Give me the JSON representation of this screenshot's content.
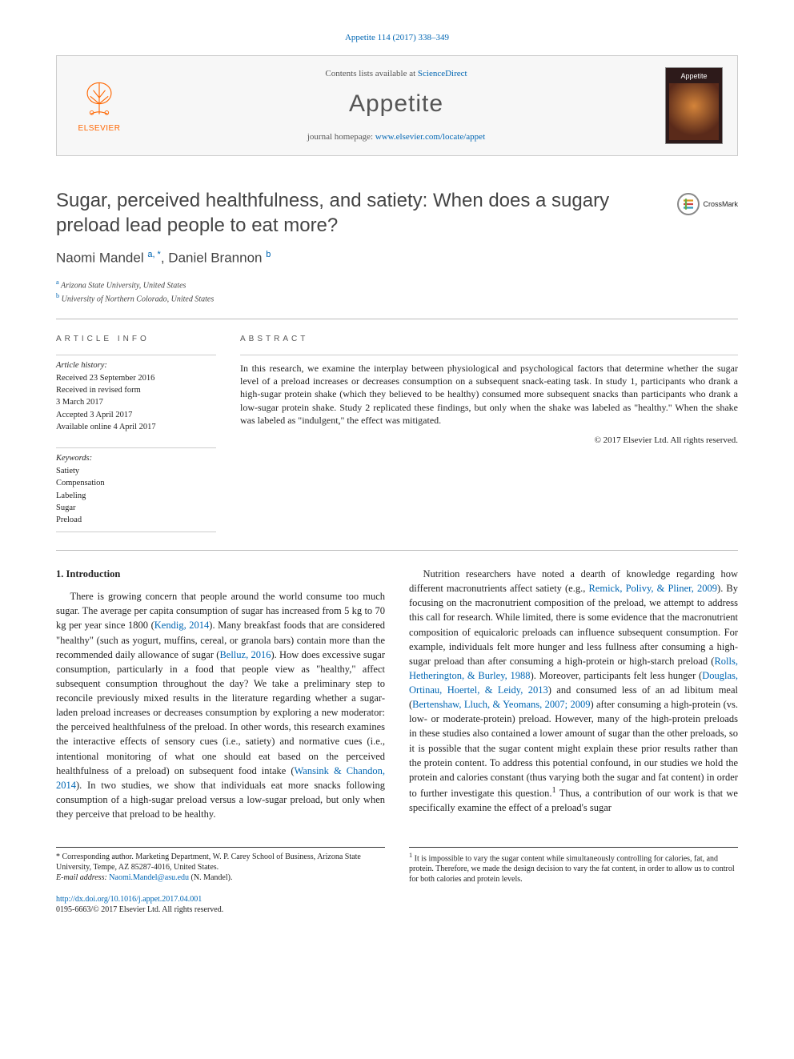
{
  "citation": "Appetite 114 (2017) 338–349",
  "header": {
    "contents_prefix": "Contents lists available at ",
    "contents_link": "ScienceDirect",
    "journal": "Appetite",
    "homepage_prefix": "journal homepage: ",
    "homepage_url": "www.elsevier.com/locate/appet",
    "publisher_label": "ELSEVIER",
    "cover_title": "Appetite"
  },
  "crossmark": "CrossMark",
  "article": {
    "title": "Sugar, perceived healthfulness, and satiety: When does a sugary preload lead people to eat more?",
    "authors_html": "Naomi Mandel <sup>a, *</sup>, Daniel Brannon <sup>b</sup>",
    "affiliations": [
      {
        "sup": "a",
        "text": "Arizona State University, United States"
      },
      {
        "sup": "b",
        "text": "University of Northern Colorado, United States"
      }
    ]
  },
  "info": {
    "heading": "article info",
    "history_label": "Article history:",
    "history": [
      "Received 23 September 2016",
      "Received in revised form",
      "3 March 2017",
      "Accepted 3 April 2017",
      "Available online 4 April 2017"
    ],
    "keywords_label": "Keywords:",
    "keywords": [
      "Satiety",
      "Compensation",
      "Labeling",
      "Sugar",
      "Preload"
    ]
  },
  "abstract": {
    "heading": "abstract",
    "text": "In this research, we examine the interplay between physiological and psychological factors that determine whether the sugar level of a preload increases or decreases consumption on a subsequent snack-eating task. In study 1, participants who drank a high-sugar protein shake (which they believed to be healthy) consumed more subsequent snacks than participants who drank a low-sugar protein shake. Study 2 replicated these findings, but only when the shake was labeled as \"healthy.\" When the shake was labeled as \"indulgent,\" the effect was mitigated.",
    "copyright": "© 2017 Elsevier Ltd. All rights reserved."
  },
  "body": {
    "section_heading": "1. Introduction",
    "para1_a": "There is growing concern that people around the world consume too much sugar. The average per capita consumption of sugar has increased from 5 kg to 70 kg per year since 1800 (",
    "cite1": "Kendig, 2014",
    "para1_b": "). Many breakfast foods that are considered \"healthy\" (such as yogurt, muffins, cereal, or granola bars) contain more than the recommended daily allowance of sugar (",
    "cite2": "Belluz, 2016",
    "para1_c": "). How does excessive sugar consumption, particularly in a food that people view as \"healthy,\" affect subsequent consumption throughout the day? We take a preliminary step to reconcile previously mixed results in the literature regarding whether a sugar-laden preload increases or decreases consumption by exploring a new moderator: the perceived healthfulness of the preload. In other words, this research examines the interactive effects of sensory cues (i.e., satiety) and normative cues (i.e., intentional monitoring of what one should eat based on the perceived healthfulness of a preload) on subsequent food intake (",
    "cite3": "Wansink & Chandon, 2014",
    "para1_d": "). In two studies, we show that individuals eat more snacks following consumption of a high-sugar preload versus a low-sugar preload, but only when they perceive that preload to be healthy.",
    "para2_a": "Nutrition researchers have noted a dearth of knowledge regarding how different macronutrients affect satiety (e.g., ",
    "cite4": "Remick, Polivy, & Pliner, 2009",
    "para2_b": "). By focusing on the macronutrient composition of the preload, we attempt to address this call for research. While limited, there is some evidence that the macronutrient composition of equicaloric preloads can influence subsequent consumption. For example, individuals felt more hunger and less fullness after consuming a high-sugar preload than after consuming a high-protein or high-starch preload (",
    "cite5": "Rolls, Hetherington, & Burley, 1988",
    "para2_c": "). Moreover, participants felt less hunger (",
    "cite6": "Douglas, Ortinau, Hoertel, & Leidy, 2013",
    "para2_d": ") and consumed less of an ad libitum meal (",
    "cite7": "Bertenshaw, Lluch, & Yeomans, 2007; 2009",
    "para2_e": ") after consuming a high-protein (vs. low- or moderate-protein) preload. However, many of the high-protein preloads in these studies also contained a lower amount of sugar than the other preloads, so it is possible that the sugar content might explain these prior results rather than the protein content. To address this potential confound, in our studies we hold the protein and calories constant (thus varying both the sugar and fat content) in order to further investigate this question.",
    "fn_marker": "1",
    "para2_f": " Thus, a contribution of our work is that we specifically examine the effect of a preload's sugar"
  },
  "footnotes": {
    "corresp_marker": "*",
    "corresp_text": "Corresponding author. Marketing Department, W. P. Carey School of Business, Arizona State University, Tempe, AZ 85287-4016, United States.",
    "email_label": "E-mail address:",
    "email": "Naomi.Mandel@asu.edu",
    "email_suffix": "(N. Mandel).",
    "fn1_marker": "1",
    "fn1_text": "It is impossible to vary the sugar content while simultaneously controlling for calories, fat, and protein. Therefore, we made the design decision to vary the fat content, in order to allow us to control for both calories and protein levels."
  },
  "doi": {
    "url": "http://dx.doi.org/10.1016/j.appet.2017.04.001",
    "issn_line": "0195-6663/© 2017 Elsevier Ltd. All rights reserved."
  },
  "colors": {
    "link": "#0066b3",
    "publisher": "#ff6600",
    "heading_gray": "#555555",
    "text": "#222222",
    "rule": "#bbbbbb"
  }
}
